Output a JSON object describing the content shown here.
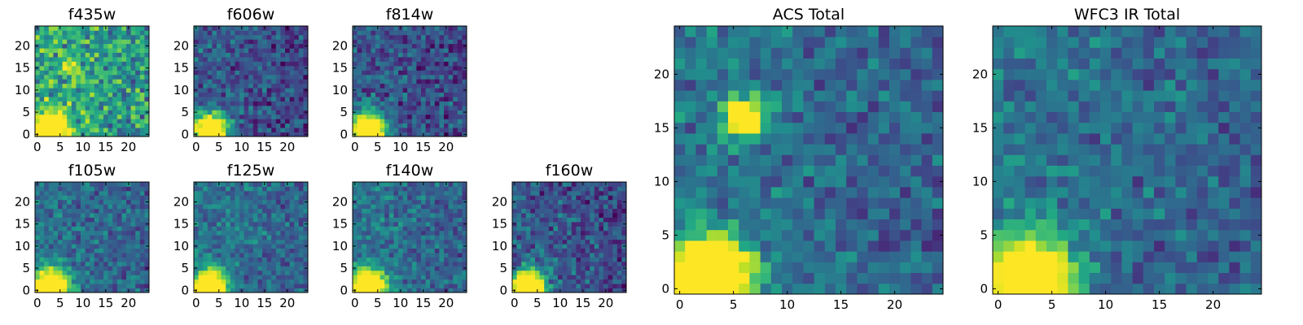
{
  "chart_data": [
    {
      "type": "heatmap",
      "title": "f435w",
      "grid_size": 25,
      "xticks": [
        "0",
        "5",
        "10",
        "15",
        "20"
      ],
      "yticks": [
        "0",
        "5",
        "10",
        "15",
        "20"
      ],
      "xlim": [
        0,
        25
      ],
      "ylim": [
        0,
        25
      ],
      "colormap": "viridis",
      "level": "bright",
      "bright_spots": [
        {
          "x": 3,
          "y": 1,
          "peak": 1.0
        },
        {
          "x": 7,
          "y": 15,
          "peak": 0.35
        }
      ]
    },
    {
      "type": "heatmap",
      "title": "f606w",
      "grid_size": 25,
      "xticks": [
        "0",
        "5",
        "10",
        "15",
        "20"
      ],
      "yticks": [
        "0",
        "5",
        "10",
        "15",
        "20"
      ],
      "xlim": [
        0,
        25
      ],
      "ylim": [
        0,
        25
      ],
      "colormap": "viridis",
      "level": "dim",
      "bright_spots": [
        {
          "x": 3,
          "y": 1,
          "peak": 1.0
        }
      ]
    },
    {
      "type": "heatmap",
      "title": "f814w",
      "grid_size": 25,
      "xticks": [
        "0",
        "5",
        "10",
        "15",
        "20"
      ],
      "yticks": [
        "0",
        "5",
        "10",
        "15",
        "20"
      ],
      "xlim": [
        0,
        25
      ],
      "ylim": [
        0,
        25
      ],
      "colormap": "viridis",
      "level": "dim",
      "bright_spots": [
        {
          "x": 3,
          "y": 1,
          "peak": 1.0
        }
      ]
    },
    {
      "type": "heatmap",
      "title": "f105w",
      "grid_size": 25,
      "xticks": [
        "0",
        "5",
        "10",
        "15",
        "20"
      ],
      "yticks": [
        "0",
        "5",
        "10",
        "15",
        "20"
      ],
      "xlim": [
        0,
        25
      ],
      "ylim": [
        0,
        25
      ],
      "colormap": "viridis",
      "level": "medium",
      "bright_spots": [
        {
          "x": 3,
          "y": 1,
          "peak": 1.0
        }
      ]
    },
    {
      "type": "heatmap",
      "title": "f125w",
      "grid_size": 25,
      "xticks": [
        "0",
        "5",
        "10",
        "15",
        "20"
      ],
      "yticks": [
        "0",
        "5",
        "10",
        "15",
        "20"
      ],
      "xlim": [
        0,
        25
      ],
      "ylim": [
        0,
        25
      ],
      "colormap": "viridis",
      "level": "medium",
      "bright_spots": [
        {
          "x": 3,
          "y": 1,
          "peak": 1.0
        }
      ]
    },
    {
      "type": "heatmap",
      "title": "f140w",
      "grid_size": 25,
      "xticks": [
        "0",
        "5",
        "10",
        "15",
        "20"
      ],
      "yticks": [
        "0",
        "5",
        "10",
        "15",
        "20"
      ],
      "xlim": [
        0,
        25
      ],
      "ylim": [
        0,
        25
      ],
      "colormap": "viridis",
      "level": "medium",
      "bright_spots": [
        {
          "x": 3,
          "y": 1,
          "peak": 1.0
        }
      ]
    },
    {
      "type": "heatmap",
      "title": "f160w",
      "grid_size": 25,
      "xticks": [
        "0",
        "5",
        "10",
        "15",
        "20"
      ],
      "yticks": [
        "0",
        "5",
        "10",
        "15",
        "20"
      ],
      "xlim": [
        0,
        25
      ],
      "ylim": [
        0,
        25
      ],
      "colormap": "viridis",
      "level": "dim",
      "bright_spots": [
        {
          "x": 3,
          "y": 1,
          "peak": 1.0
        }
      ]
    },
    {
      "type": "heatmap",
      "title": "ACS Total",
      "grid_size": 25,
      "xticks": [
        "0",
        "5",
        "10",
        "15",
        "20"
      ],
      "yticks": [
        "0",
        "5",
        "10",
        "15",
        "20"
      ],
      "xlim": [
        0,
        25
      ],
      "ylim": [
        0,
        25
      ],
      "colormap": "viridis",
      "level": "medium",
      "bright_spots": [
        {
          "x": 3,
          "y": 1,
          "peak": 1.0
        },
        {
          "x": 6,
          "y": 16,
          "peak": 0.8
        }
      ]
    },
    {
      "type": "heatmap",
      "title": "WFC3 IR Total",
      "grid_size": 25,
      "xticks": [
        "0",
        "5",
        "10",
        "15",
        "20"
      ],
      "yticks": [
        "0",
        "5",
        "10",
        "15",
        "20"
      ],
      "xlim": [
        0,
        25
      ],
      "ylim": [
        0,
        25
      ],
      "colormap": "viridis",
      "level": "medium",
      "bright_spots": [
        {
          "x": 3,
          "y": 1,
          "peak": 1.0
        }
      ]
    }
  ]
}
